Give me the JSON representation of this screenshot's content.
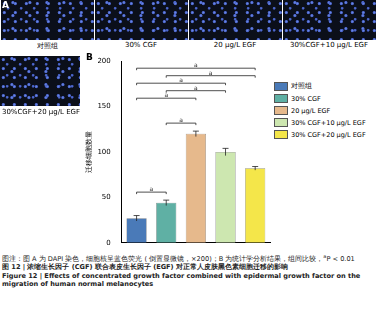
{
  "panel_a": {
    "label": "A",
    "images": [
      "对照组",
      "30% CGF",
      "20 μg/L EGF",
      "30%CGF+10 μg/L EGF",
      "30%CGF+20 μg/L EGF"
    ]
  },
  "chart_data": {
    "type": "bar",
    "panel_label": "B",
    "y_label": "迁移细胞数量",
    "categories": [
      "对照组",
      "30% CGF",
      "20 μg/L EGF",
      "30% CGF+10 μg/L EGF",
      "30% CGF+20 μg/L EGF"
    ],
    "values": [
      27,
      44,
      120,
      100,
      82
    ],
    "errors": [
      3,
      3,
      3,
      4,
      2
    ],
    "colors": [
      "#4a7ab8",
      "#5fb0a4",
      "#e6b98c",
      "#cde7b0",
      "#f4e64a"
    ],
    "ylim": [
      0,
      200
    ],
    "yticks": [
      0,
      50,
      100,
      150,
      200
    ],
    "tick_labels": "y",
    "legend": "right",
    "grid": false,
    "comparisons": [
      {
        "pair": [
          0,
          1
        ],
        "label": "a"
      },
      {
        "pair": [
          0,
          4
        ],
        "label": "a"
      },
      {
        "pair": [
          1,
          4
        ],
        "label": "a"
      },
      {
        "pair": [
          0,
          3
        ],
        "label": "a"
      },
      {
        "pair": [
          1,
          3
        ],
        "label": "a"
      },
      {
        "pair": [
          0,
          2
        ],
        "label": "a"
      },
      {
        "pair": [
          1,
          2
        ],
        "label": "a"
      }
    ]
  },
  "caption": {
    "note": "图注：图 A 为 DAPI 染色，细胞核呈蓝色荧光 ( 倒置显微镜，×200)；B 为统计学分析结果，组间比较，",
    "note_sup": "a",
    "note_end": "P < 0.01",
    "title_zh": "图 12 | 浓缩生长因子 (CGF) 联合表皮生长因子 (EGF) 对正常人皮肤黑色素细胞迁移的影响",
    "title_en": "Figure 12 | Effects of concentrated growth factor combined with epidermal growth factor on the migration of human normal melanocytes"
  }
}
